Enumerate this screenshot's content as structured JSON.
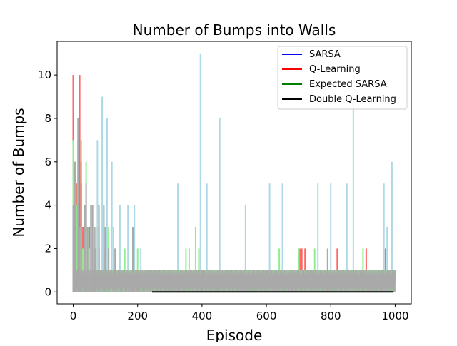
{
  "chart_data": {
    "type": "line",
    "title": "Number of Bumps into Walls",
    "xlabel": "Episode",
    "ylabel": "Number of Bumps",
    "xlim": [
      -50,
      1050
    ],
    "ylim": [
      -0.55,
      11.55
    ],
    "x_ticks": [
      0,
      200,
      400,
      600,
      800,
      1000
    ],
    "y_ticks": [
      0,
      2,
      4,
      6,
      8,
      10
    ],
    "x_tick_labels": [
      "0",
      "200",
      "400",
      "600",
      "800",
      "1000"
    ],
    "y_tick_labels": [
      "0",
      "2",
      "4",
      "6",
      "8",
      "10"
    ],
    "grid": false,
    "legend_position": "upper-right",
    "legend": [
      {
        "name": "SARSA",
        "color": "#0000ff"
      },
      {
        "name": "Q-Learning",
        "color": "#ff0000"
      },
      {
        "name": "Expected SARSA",
        "color": "#008000"
      },
      {
        "name": "Double Q-Learning",
        "color": "#000000"
      }
    ],
    "series": [
      {
        "name": "SARSA",
        "color": "#add8e6",
        "spikes": [
          [
            0,
            10
          ],
          [
            5,
            5
          ],
          [
            10,
            4
          ],
          [
            15,
            7
          ],
          [
            25,
            3
          ],
          [
            30,
            3
          ],
          [
            40,
            4
          ],
          [
            55,
            4
          ],
          [
            60,
            3
          ],
          [
            65,
            2
          ],
          [
            75,
            7
          ],
          [
            80,
            3
          ],
          [
            90,
            9
          ],
          [
            100,
            3
          ],
          [
            105,
            8
          ],
          [
            110,
            2
          ],
          [
            120,
            6
          ],
          [
            125,
            3
          ],
          [
            130,
            2
          ],
          [
            145,
            4
          ],
          [
            160,
            1
          ],
          [
            170,
            4
          ],
          [
            190,
            4
          ],
          [
            210,
            2
          ],
          [
            325,
            5
          ],
          [
            395,
            11
          ],
          [
            415,
            5
          ],
          [
            455,
            8
          ],
          [
            535,
            4
          ],
          [
            610,
            5
          ],
          [
            650,
            5
          ],
          [
            700,
            2
          ],
          [
            760,
            5
          ],
          [
            800,
            5
          ],
          [
            850,
            5
          ],
          [
            870,
            9
          ],
          [
            965,
            5
          ],
          [
            975,
            3
          ],
          [
            990,
            6
          ]
        ],
        "baseline_toggle": true
      },
      {
        "name": "Q-Learning",
        "color": "#ff6666",
        "spikes": [
          [
            0,
            10
          ],
          [
            5,
            6
          ],
          [
            10,
            5
          ],
          [
            20,
            10
          ],
          [
            25,
            6
          ],
          [
            30,
            3
          ],
          [
            35,
            4
          ],
          [
            50,
            3
          ],
          [
            60,
            2
          ],
          [
            70,
            3
          ],
          [
            80,
            2
          ],
          [
            100,
            2
          ],
          [
            130,
            1
          ],
          [
            150,
            1
          ],
          [
            170,
            1
          ],
          [
            200,
            1
          ],
          [
            250,
            1
          ],
          [
            300,
            1
          ],
          [
            440,
            1
          ],
          [
            640,
            1
          ],
          [
            705,
            2
          ],
          [
            710,
            2
          ],
          [
            720,
            2
          ],
          [
            820,
            2
          ],
          [
            880,
            1
          ],
          [
            910,
            2
          ],
          [
            970,
            2
          ]
        ],
        "baseline_toggle": true
      },
      {
        "name": "Expected SARSA",
        "color": "#90ee90",
        "spikes": [
          [
            0,
            7
          ],
          [
            3,
            6
          ],
          [
            8,
            5
          ],
          [
            12,
            4
          ],
          [
            15,
            4
          ],
          [
            20,
            3
          ],
          [
            25,
            7
          ],
          [
            30,
            2
          ],
          [
            40,
            6
          ],
          [
            45,
            3
          ],
          [
            50,
            2
          ],
          [
            60,
            4
          ],
          [
            70,
            3
          ],
          [
            80,
            2
          ],
          [
            90,
            1
          ],
          [
            110,
            3
          ],
          [
            120,
            1
          ],
          [
            140,
            1
          ],
          [
            160,
            2
          ],
          [
            200,
            2
          ],
          [
            260,
            1
          ],
          [
            320,
            1
          ],
          [
            350,
            2
          ],
          [
            360,
            2
          ],
          [
            380,
            3
          ],
          [
            390,
            2
          ],
          [
            640,
            2
          ],
          [
            700,
            2
          ],
          [
            750,
            2
          ],
          [
            870,
            1
          ],
          [
            900,
            2
          ],
          [
            950,
            1
          ]
        ],
        "baseline_toggle": true
      },
      {
        "name": "Double Q-Learning",
        "color": "#a9a9a9",
        "spikes": [
          [
            0,
            4
          ],
          [
            5,
            6
          ],
          [
            8,
            4
          ],
          [
            15,
            8
          ],
          [
            20,
            3
          ],
          [
            25,
            5
          ],
          [
            35,
            4
          ],
          [
            40,
            5
          ],
          [
            45,
            3
          ],
          [
            55,
            4
          ],
          [
            60,
            4
          ],
          [
            65,
            3
          ],
          [
            70,
            2
          ],
          [
            80,
            4
          ],
          [
            95,
            4
          ],
          [
            100,
            3
          ],
          [
            110,
            2
          ],
          [
            130,
            2
          ],
          [
            150,
            1
          ],
          [
            185,
            3
          ],
          [
            200,
            1
          ],
          [
            240,
            1
          ],
          [
            300,
            1
          ],
          [
            400,
            1
          ],
          [
            450,
            1
          ],
          [
            520,
            1
          ],
          [
            560,
            1
          ],
          [
            600,
            1
          ],
          [
            680,
            1
          ],
          [
            740,
            1
          ],
          [
            790,
            2
          ],
          [
            830,
            1
          ],
          [
            900,
            1
          ],
          [
            960,
            1
          ],
          [
            995,
            1
          ]
        ],
        "baseline_toggle": true
      },
      {
        "name": "Double Q-Learning (mean)",
        "color": "#000000",
        "segment": [
          [
            245,
            0
          ],
          [
            995,
            0
          ]
        ]
      }
    ]
  }
}
